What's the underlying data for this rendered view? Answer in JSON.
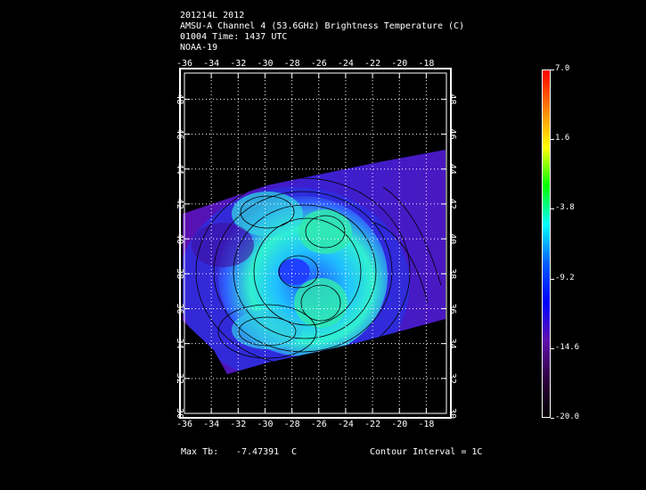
{
  "header": {
    "line1": "201214L 2012",
    "line2": "AMSU-A Channel 4 (53.6GHz) Brightness Temperature (C)",
    "line3": "01004 Time: 1437 UTC",
    "line4": "NOAA-19"
  },
  "map": {
    "lon_ticks": [
      "-36",
      "-34",
      "-32",
      "-30",
      "-28",
      "-26",
      "-24",
      "-22",
      "-20",
      "-18"
    ],
    "lat_ticks": [
      "30",
      "32",
      "34",
      "36",
      "38",
      "40",
      "42",
      "44",
      "46",
      "48"
    ],
    "lon_range": [
      -36,
      -16.5
    ],
    "lat_range": [
      30,
      49.5
    ]
  },
  "footer": {
    "max_label": "Max Tb:",
    "max_value": "-7.47391",
    "max_unit": "C",
    "contour": "Contour Interval = 1C"
  },
  "colorbar": {
    "labels": [
      "7.0",
      "1.6",
      "-3.8",
      "-9.2",
      "-14.6",
      "-20.0"
    ],
    "values": [
      7.0,
      1.6,
      -3.8,
      -9.2,
      -14.6,
      -20.0
    ],
    "colors": [
      "#ff0000",
      "#ff8000",
      "#ffff00",
      "#00ff00",
      "#00ffff",
      "#0060ff",
      "#0000ff",
      "#6010b0",
      "#300040",
      "#000000"
    ]
  }
}
